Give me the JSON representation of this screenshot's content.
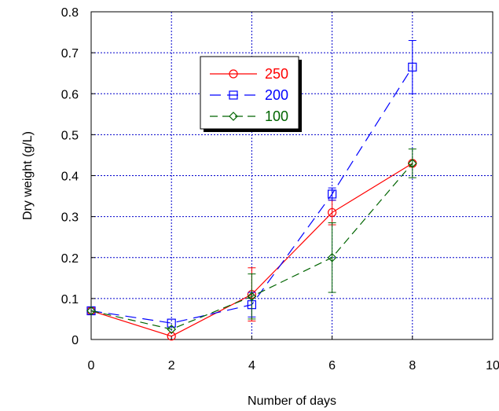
{
  "chart_data": {
    "type": "line",
    "title": "",
    "xlabel": "Number of days",
    "ylabel": "Dry weight (g/L)",
    "xlim": [
      0,
      10
    ],
    "ylim": [
      0,
      0.8
    ],
    "xticks": [
      "0",
      "2",
      "4",
      "6",
      "8",
      "10"
    ],
    "yticks": [
      "0",
      "0.1",
      "0.2",
      "0.3",
      "0.4",
      "0.5",
      "0.6",
      "0.7",
      "0.8"
    ],
    "grid": true,
    "legend_position": "upper-left-inside",
    "series": [
      {
        "name": "250",
        "color": "#ff0000",
        "marker": "circle",
        "line_style": "solid",
        "x": [
          0,
          2,
          4,
          6,
          8
        ],
        "y": [
          0.07,
          0.008,
          0.11,
          0.31,
          0.43
        ],
        "error": [
          0.0,
          0.0,
          0.065,
          0.03,
          0.0
        ]
      },
      {
        "name": "200",
        "color": "#0000ff",
        "marker": "square",
        "line_style": "long-dash",
        "x": [
          0,
          2,
          4,
          6,
          8
        ],
        "y": [
          0.07,
          0.04,
          0.085,
          0.355,
          0.665
        ],
        "error": [
          0.0,
          0.0,
          0.03,
          0.015,
          0.065
        ]
      },
      {
        "name": "100",
        "color": "#006400",
        "marker": "diamond",
        "line_style": "dash",
        "x": [
          0,
          2,
          4,
          6,
          8
        ],
        "y": [
          0.07,
          0.025,
          0.105,
          0.2,
          0.43
        ],
        "error": [
          0.0,
          0.0,
          0.055,
          0.085,
          0.035
        ]
      }
    ]
  }
}
